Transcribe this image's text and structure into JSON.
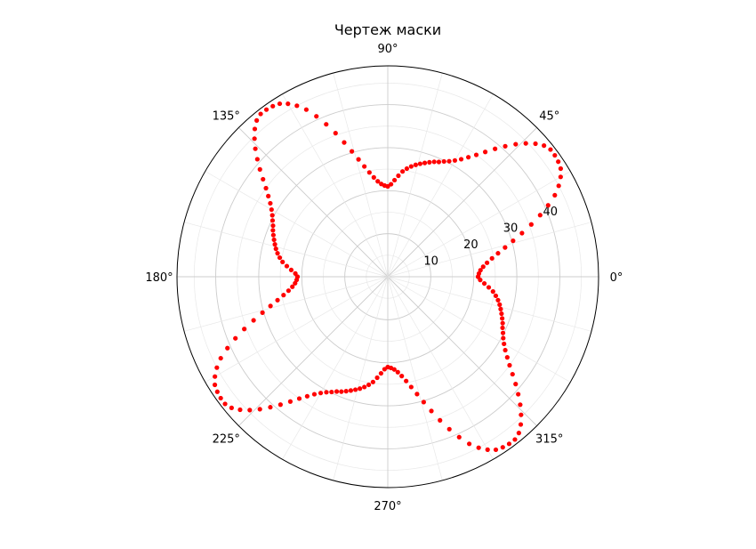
{
  "chart_data": {
    "type": "scatter",
    "projection": "polar",
    "title": "Чертеж маски",
    "theta_ticks_deg": [
      0,
      45,
      90,
      135,
      180,
      225,
      270,
      315
    ],
    "theta_tick_labels": [
      "0°",
      "45°",
      "90°",
      "135°",
      "180°",
      "225°",
      "270°",
      "315°"
    ],
    "r_ticks": [
      10,
      20,
      30,
      40
    ],
    "r_tick_labels": [
      "10",
      "20",
      "30",
      "40"
    ],
    "r_minor_grid_step": 5,
    "theta_minor_grid_step_deg": 15,
    "rlim": [
      0,
      49
    ],
    "grid": true,
    "colors": {
      "marker": "#ff0000",
      "grid_major": "#cccccc",
      "grid_minor": "#e8e8e8",
      "frame": "#000000"
    },
    "series": [
      {
        "marker": "o",
        "description_points": "theta in degrees, r in data units",
        "theta_deg": [
          0,
          2,
          4,
          6,
          8,
          10,
          12,
          14,
          16,
          18,
          20,
          22,
          24,
          26,
          28,
          30,
          32,
          34,
          36,
          38,
          40,
          42,
          44,
          46,
          48,
          50,
          52,
          54,
          56,
          58,
          60,
          62,
          64,
          66,
          68,
          70,
          72,
          74,
          76,
          78,
          80,
          82,
          84,
          86,
          88,
          90,
          90,
          92,
          94,
          96,
          98,
          100,
          102,
          104,
          106,
          108,
          110,
          112,
          114,
          116,
          118,
          120,
          122,
          124,
          126,
          128,
          130,
          132,
          134,
          136,
          138,
          140,
          142,
          144,
          146,
          148,
          150,
          152,
          154,
          156,
          158,
          160,
          162,
          164,
          166,
          168,
          170,
          172,
          174,
          176,
          178,
          180,
          180,
          182,
          184,
          186,
          188,
          190,
          192,
          194,
          196,
          198,
          200,
          202,
          204,
          206,
          208,
          210,
          212,
          214,
          216,
          218,
          220,
          222,
          224,
          226,
          228,
          230,
          232,
          234,
          236,
          238,
          240,
          242,
          244,
          246,
          248,
          250,
          252,
          254,
          256,
          258,
          260,
          262,
          264,
          266,
          268,
          270,
          270,
          272,
          274,
          276,
          278,
          280,
          282,
          284,
          286,
          288,
          290,
          292,
          294,
          296,
          298,
          300,
          302,
          304,
          306,
          308,
          310,
          312,
          314,
          316,
          318,
          320,
          322,
          324,
          326,
          328,
          330,
          332,
          334,
          336,
          338,
          340,
          342,
          344,
          346,
          348,
          350,
          352,
          354,
          356,
          358,
          360
        ],
        "r": [
          21,
          21.2,
          21.6,
          22.3,
          23.3,
          24.6,
          26.2,
          28.1,
          30.3,
          32.8,
          35.5,
          38.2,
          40.8,
          43.2,
          45,
          46.4,
          47.4,
          47.8,
          48,
          48,
          47.4,
          46.2,
          44.6,
          42.8,
          40.8,
          38.8,
          36.8,
          35,
          33.5,
          32.2,
          31.2,
          30.4,
          29.8,
          29.2,
          28.8,
          28.3,
          27.8,
          27.3,
          26.8,
          26.2,
          25.5,
          24.7,
          23.6,
          22.5,
          21.5,
          21,
          21,
          21.2,
          21.6,
          22.3,
          23.3,
          24.6,
          26.2,
          28.1,
          30.3,
          32.8,
          35.5,
          38.2,
          40.8,
          43.2,
          45,
          46.4,
          47.4,
          47.8,
          48,
          48,
          47.4,
          46.2,
          44.6,
          42.8,
          40.8,
          38.8,
          36.8,
          35,
          33.5,
          32.2,
          31.2,
          30.4,
          29.8,
          29.2,
          28.8,
          28.3,
          27.8,
          27.3,
          26.8,
          26.2,
          25.5,
          24.7,
          23.6,
          22.5,
          21.5,
          21,
          21,
          21.2,
          21.6,
          22.3,
          23.3,
          24.6,
          26.2,
          28.1,
          30.3,
          32.8,
          35.5,
          38.2,
          40.8,
          43.2,
          45,
          46.4,
          47.4,
          47.8,
          48,
          48,
          47.4,
          46.2,
          44.6,
          42.8,
          40.8,
          38.8,
          36.8,
          35,
          33.5,
          32.2,
          31.2,
          30.4,
          29.8,
          29.2,
          28.8,
          28.3,
          27.8,
          27.3,
          26.8,
          26.2,
          25.5,
          24.7,
          23.6,
          22.5,
          21.5,
          21,
          21,
          21.2,
          21.6,
          22.3,
          23.3,
          24.6,
          26.2,
          28.1,
          30.3,
          32.8,
          35.5,
          38.2,
          40.8,
          43.2,
          45,
          46.4,
          47.4,
          47.8,
          48,
          48,
          47.4,
          46.2,
          44.6,
          42.8,
          40.8,
          38.8,
          36.8,
          35,
          33.5,
          32.2,
          31.2,
          30.4,
          29.8,
          29.2,
          28.8,
          28.3,
          27.8,
          27.3,
          26.8,
          26.2,
          25.5,
          24.7,
          23.6,
          22.5,
          21.5,
          21
        ]
      }
    ]
  }
}
